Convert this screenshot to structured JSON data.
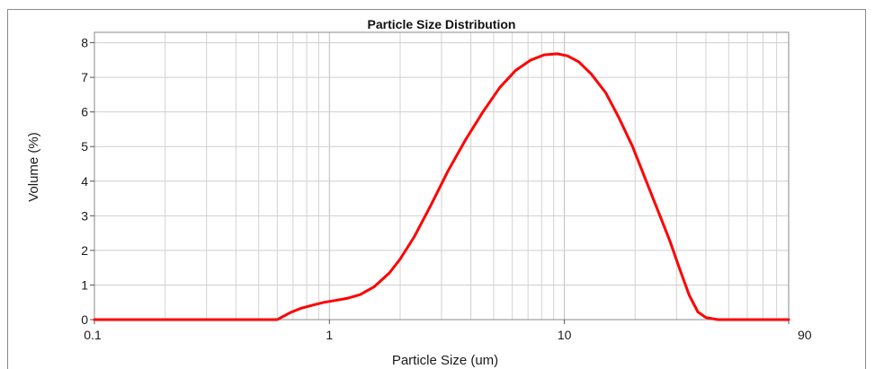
{
  "chart_data": {
    "type": "line",
    "title": "Particle Size Distribution",
    "xlabel": "Particle Size (um)",
    "ylabel": "Volume (%)",
    "x_scale": "log",
    "xlim": [
      0.1,
      90
    ],
    "ylim": [
      0,
      8.3
    ],
    "x_tick_labels": [
      "0.1",
      "1",
      "10",
      "90"
    ],
    "x_tick_values": [
      0.1,
      1,
      10,
      90
    ],
    "y_ticks": [
      0,
      1,
      2,
      3,
      4,
      5,
      6,
      7,
      8
    ],
    "grid": true,
    "line_color": "#ff0000",
    "series": [
      {
        "values": [
          [
            0.1,
            0
          ],
          [
            0.2,
            0
          ],
          [
            0.3,
            0
          ],
          [
            0.5,
            0
          ],
          [
            0.6,
            0
          ],
          [
            0.63,
            0.08
          ],
          [
            0.68,
            0.2
          ],
          [
            0.75,
            0.32
          ],
          [
            0.85,
            0.42
          ],
          [
            0.95,
            0.5
          ],
          [
            1.05,
            0.55
          ],
          [
            1.2,
            0.62
          ],
          [
            1.35,
            0.72
          ],
          [
            1.55,
            0.95
          ],
          [
            1.8,
            1.35
          ],
          [
            2.0,
            1.75
          ],
          [
            2.3,
            2.4
          ],
          [
            2.7,
            3.3
          ],
          [
            3.2,
            4.3
          ],
          [
            3.8,
            5.2
          ],
          [
            4.5,
            6.0
          ],
          [
            5.3,
            6.7
          ],
          [
            6.2,
            7.2
          ],
          [
            7.2,
            7.5
          ],
          [
            8.2,
            7.65
          ],
          [
            9.3,
            7.68
          ],
          [
            10.3,
            7.62
          ],
          [
            11.5,
            7.45
          ],
          [
            13,
            7.1
          ],
          [
            15,
            6.55
          ],
          [
            17,
            5.85
          ],
          [
            19.5,
            5.0
          ],
          [
            22,
            4.1
          ],
          [
            25,
            3.15
          ],
          [
            28,
            2.3
          ],
          [
            31,
            1.45
          ],
          [
            34,
            0.7
          ],
          [
            37,
            0.22
          ],
          [
            40,
            0.06
          ],
          [
            45,
            0
          ],
          [
            55,
            0
          ],
          [
            70,
            0
          ],
          [
            90,
            0
          ]
        ]
      }
    ]
  }
}
